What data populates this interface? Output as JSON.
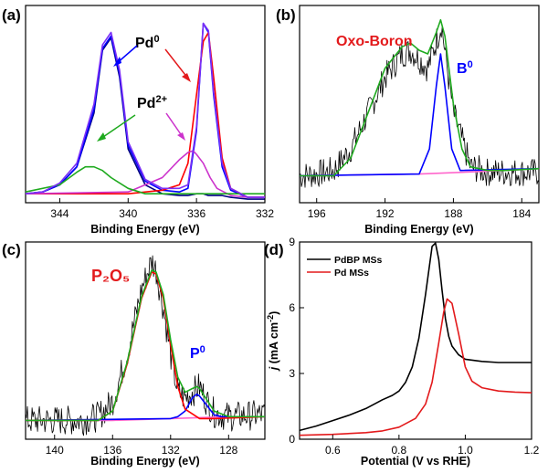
{
  "chart_data": [
    {
      "panel": "(a)",
      "type": "line",
      "xlabel": "Binding Energy (eV)",
      "xlim": [
        346,
        332
      ],
      "xticks": [
        "344",
        "340",
        "336",
        "332"
      ],
      "annotations": [
        {
          "label": "Pd",
          "sup": "0",
          "color": "#000000"
        },
        {
          "label": "Pd",
          "sup": "2+",
          "color": "#000000"
        }
      ],
      "series": [
        {
          "color": "#000080",
          "x": [
            346,
            345,
            344,
            343,
            342,
            341.5,
            341,
            340.5,
            340,
            339,
            338,
            337,
            336.5,
            336,
            335.6,
            335.3,
            335,
            334.5,
            334,
            333,
            332
          ],
          "y": [
            0.05,
            0.06,
            0.1,
            0.2,
            0.5,
            0.85,
            0.92,
            0.7,
            0.3,
            0.1,
            0.05,
            0.04,
            0.04,
            0.05,
            0.05,
            0.04,
            0.04,
            0.04,
            0.03,
            0.02,
            0.02
          ]
        },
        {
          "color": "#0000ff",
          "x": [
            346,
            345,
            344,
            343,
            342,
            341.5,
            341,
            340.5,
            340,
            339,
            338,
            337,
            336.5,
            336,
            335.6,
            335.3,
            335,
            334.5,
            334,
            333,
            332
          ],
          "y": [
            0.05,
            0.06,
            0.1,
            0.2,
            0.52,
            0.86,
            0.93,
            0.72,
            0.32,
            0.12,
            0.07,
            0.06,
            0.08,
            0.4,
            1.0,
            0.95,
            0.6,
            0.2,
            0.07,
            0.03,
            0.03
          ]
        },
        {
          "color": "#ff0000",
          "x": [
            346,
            340,
            338,
            337,
            336.5,
            336,
            335.6,
            335.3,
            335,
            334.5,
            334,
            333,
            332
          ],
          "y": [
            0.05,
            0.05,
            0.07,
            0.1,
            0.22,
            0.6,
            0.9,
            0.95,
            0.7,
            0.25,
            0.08,
            0.03,
            0.03
          ]
        },
        {
          "color": "#cc33cc",
          "x": [
            346,
            340,
            338,
            337,
            336.5,
            336.2,
            336,
            335.6,
            335.2,
            334.8,
            334,
            333,
            332
          ],
          "y": [
            0.05,
            0.06,
            0.14,
            0.24,
            0.28,
            0.29,
            0.27,
            0.22,
            0.14,
            0.08,
            0.04,
            0.03,
            0.03
          ]
        },
        {
          "color": "#1faa1f",
          "x": [
            346,
            344,
            343,
            342.5,
            342,
            341.5,
            341,
            340,
            339,
            338,
            336,
            332
          ],
          "y": [
            0.06,
            0.1,
            0.17,
            0.2,
            0.2,
            0.18,
            0.14,
            0.08,
            0.05,
            0.05,
            0.05,
            0.05
          ]
        },
        {
          "color": "#7b2ff7",
          "x": [
            346,
            345,
            344,
            343,
            342,
            341.5,
            341,
            340.5,
            340,
            339,
            338,
            337,
            336.5,
            336,
            335.6,
            335.3,
            335,
            334.5,
            334,
            333,
            332
          ],
          "y": [
            0.05,
            0.06,
            0.11,
            0.22,
            0.55,
            0.88,
            0.95,
            0.74,
            0.34,
            0.13,
            0.08,
            0.08,
            0.1,
            0.42,
            1.0,
            0.96,
            0.62,
            0.22,
            0.08,
            0.03,
            0.03
          ]
        }
      ]
    },
    {
      "panel": "(b)",
      "type": "line",
      "xlabel": "Binding Energy (eV)",
      "xlim": [
        197,
        183
      ],
      "xticks": [
        "196",
        "192",
        "188",
        "184"
      ],
      "annotations": [
        {
          "label": "Oxo-Boron",
          "sup": "",
          "color": "#e31a1c"
        },
        {
          "label": "B",
          "sup": "0",
          "color": "#0000ff"
        }
      ],
      "series": [
        {
          "color": "#000000",
          "noisy": true,
          "x": [
            197,
            196,
            195,
            194,
            193,
            192,
            191,
            190.5,
            190,
            189.5,
            189,
            188.7,
            188.5,
            188,
            187,
            186,
            185,
            184,
            183
          ],
          "y": [
            0.1,
            0.11,
            0.13,
            0.25,
            0.45,
            0.65,
            0.78,
            0.8,
            0.75,
            0.7,
            0.85,
            0.95,
            0.8,
            0.45,
            0.15,
            0.12,
            0.12,
            0.12,
            0.12
          ]
        },
        {
          "color": "#ff66cc",
          "x": [
            197,
            190,
            185,
            183
          ],
          "y": [
            0.1,
            0.11,
            0.13,
            0.14
          ]
        },
        {
          "color": "#0000ff",
          "x": [
            197,
            190,
            189.4,
            189,
            188.75,
            188.5,
            188.1,
            187.6,
            183
          ],
          "y": [
            0.1,
            0.11,
            0.25,
            0.6,
            0.78,
            0.6,
            0.25,
            0.13,
            0.14
          ]
        },
        {
          "color": "#1faa1f",
          "x": [
            197,
            195,
            194,
            193,
            192,
            191,
            190.5,
            190,
            189.5,
            189,
            188.75,
            188.5,
            188,
            187.5,
            187,
            186,
            185,
            183
          ],
          "y": [
            0.1,
            0.1,
            0.2,
            0.45,
            0.7,
            0.82,
            0.84,
            0.8,
            0.78,
            0.9,
            0.97,
            0.88,
            0.5,
            0.25,
            0.15,
            0.13,
            0.13,
            0.14
          ]
        }
      ]
    },
    {
      "panel": "(c)",
      "type": "line",
      "xlabel": "Binding Energy (eV)",
      "xlim": [
        142,
        125.5
      ],
      "xticks": [
        "140",
        "136",
        "132",
        "128"
      ],
      "annotations": [
        {
          "label": "P₂O₅",
          "sup": "",
          "color": "#e31a1c"
        },
        {
          "label": "P",
          "sup": "0",
          "color": "#0000ff"
        }
      ],
      "series": [
        {
          "color": "#000000",
          "noisy": true,
          "x": [
            142,
            140,
            138,
            137,
            136,
            135,
            134,
            133.3,
            133,
            132.5,
            132,
            131.5,
            131,
            130.5,
            130,
            129.5,
            129,
            128,
            126,
            125.5
          ],
          "y": [
            0.1,
            0.1,
            0.1,
            0.12,
            0.2,
            0.45,
            0.8,
            0.95,
            0.9,
            0.7,
            0.45,
            0.25,
            0.22,
            0.25,
            0.28,
            0.2,
            0.14,
            0.12,
            0.13,
            0.13
          ]
        },
        {
          "color": "#ff66cc",
          "x": [
            142,
            136,
            132,
            128,
            125.5
          ],
          "y": [
            0.1,
            0.1,
            0.11,
            0.12,
            0.12
          ]
        },
        {
          "color": "#0000ff",
          "x": [
            142,
            132,
            131.5,
            131,
            130.5,
            130.2,
            130,
            129.5,
            129,
            128.5,
            125.5
          ],
          "y": [
            0.1,
            0.11,
            0.12,
            0.15,
            0.22,
            0.24,
            0.23,
            0.18,
            0.13,
            0.12,
            0.12
          ]
        },
        {
          "color": "#ff0000",
          "x": [
            142,
            137,
            136,
            135,
            134,
            133.3,
            133,
            132.5,
            132,
            131.5,
            131,
            130,
            129,
            125.5
          ],
          "y": [
            0.1,
            0.1,
            0.15,
            0.4,
            0.75,
            0.89,
            0.88,
            0.75,
            0.5,
            0.28,
            0.16,
            0.11,
            0.11,
            0.12
          ]
        },
        {
          "color": "#1faa1f",
          "x": [
            142,
            137,
            136,
            135,
            134,
            133.3,
            133,
            132.5,
            132,
            131.5,
            131,
            130.5,
            130.2,
            130,
            129.5,
            129,
            128,
            125.5
          ],
          "y": [
            0.1,
            0.1,
            0.15,
            0.41,
            0.76,
            0.9,
            0.89,
            0.77,
            0.53,
            0.33,
            0.25,
            0.27,
            0.28,
            0.27,
            0.21,
            0.15,
            0.12,
            0.12
          ]
        }
      ]
    },
    {
      "panel": "(d)",
      "type": "line",
      "xlabel": "Potential (V vs RHE)",
      "ylabel": "j (mA cm⁻²)",
      "ylabel_italic": "j",
      "ylabel_rest": " (mA cm",
      "ylabel_sup": "-2",
      "ylabel_end": ")",
      "xlim": [
        0.5,
        1.2
      ],
      "ylim": [
        0,
        9
      ],
      "xticks": [
        "0.6",
        "0.8",
        "1.0",
        "1.2"
      ],
      "yticks": [
        "0",
        "3",
        "6",
        "9"
      ],
      "legend_position": "top-left",
      "series": [
        {
          "name": "PdBP MSs",
          "color": "#000000",
          "x": [
            0.5,
            0.55,
            0.6,
            0.65,
            0.7,
            0.75,
            0.78,
            0.8,
            0.82,
            0.84,
            0.86,
            0.88,
            0.9,
            0.91,
            0.92,
            0.93,
            0.94,
            0.95,
            0.96,
            0.98,
            1.0,
            1.05,
            1.1,
            1.15,
            1.2
          ],
          "y": [
            0.4,
            0.6,
            0.85,
            1.1,
            1.4,
            1.8,
            2.0,
            2.2,
            2.6,
            3.3,
            4.6,
            6.6,
            8.8,
            8.95,
            8.2,
            6.8,
            5.5,
            4.7,
            4.25,
            3.85,
            3.65,
            3.55,
            3.5,
            3.5,
            3.5
          ]
        },
        {
          "name": "Pd MSs",
          "color": "#e31a1c",
          "x": [
            0.5,
            0.6,
            0.7,
            0.75,
            0.8,
            0.85,
            0.88,
            0.9,
            0.92,
            0.935,
            0.945,
            0.96,
            0.98,
            1.0,
            1.02,
            1.05,
            1.1,
            1.15,
            1.2
          ],
          "y": [
            0.18,
            0.22,
            0.3,
            0.38,
            0.55,
            0.95,
            1.6,
            2.6,
            4.4,
            5.8,
            6.4,
            6.2,
            4.8,
            3.3,
            2.65,
            2.35,
            2.2,
            2.15,
            2.12
          ]
        }
      ]
    }
  ]
}
